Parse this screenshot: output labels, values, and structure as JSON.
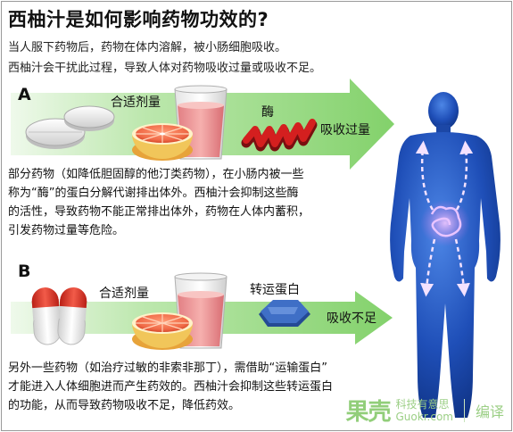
{
  "title": "西柚汁是如何影响药物功效的?",
  "intro": [
    "当人服下药物后，药物在体内溶解，被小肠细胞吸收。",
    "西柚汁会干扰此过程，导致人体对药物吸收过量或吸收不足。"
  ],
  "section_a": {
    "letter": "A",
    "dose_label": "合适剂量",
    "enzyme_label": "酶",
    "result_label": "吸收过量",
    "paragraph": [
      "部分药物（如降低胆固醇的他汀类药物），在小肠内被一些",
      "称为“酶”的蛋白分解代谢排出体外。西柚汁会抑制这些酶",
      "的活性，导致药物不能正常排出体外，药物在人体内蓄积，",
      "引发药物过量等危险。"
    ]
  },
  "section_b": {
    "letter": "B",
    "dose_label": "合适剂量",
    "transporter_label": "转运蛋白",
    "result_label": "吸收不足",
    "paragraph": [
      "另外一些药物（如治疗过敏的非索非那丁），需借助“运输蛋白”",
      "才能进入人体细胞进而产生药效的。西柚汁会抑制这些转运蛋白",
      "的功能，从而导致药物吸收不足，降低药效。"
    ]
  },
  "watermark": {
    "logo": "果壳",
    "site": "科技有意思",
    "url": "Guokr.com",
    "tag": "编译"
  },
  "colors": {
    "arrow_green": "#a8dc97",
    "body_blue": "#1f4fb8",
    "enzyme_red": "#c8191a",
    "juice_pink": "#f29a9a",
    "capsule_red": "#e2382a",
    "transporter_blue": "#3a66b8"
  }
}
